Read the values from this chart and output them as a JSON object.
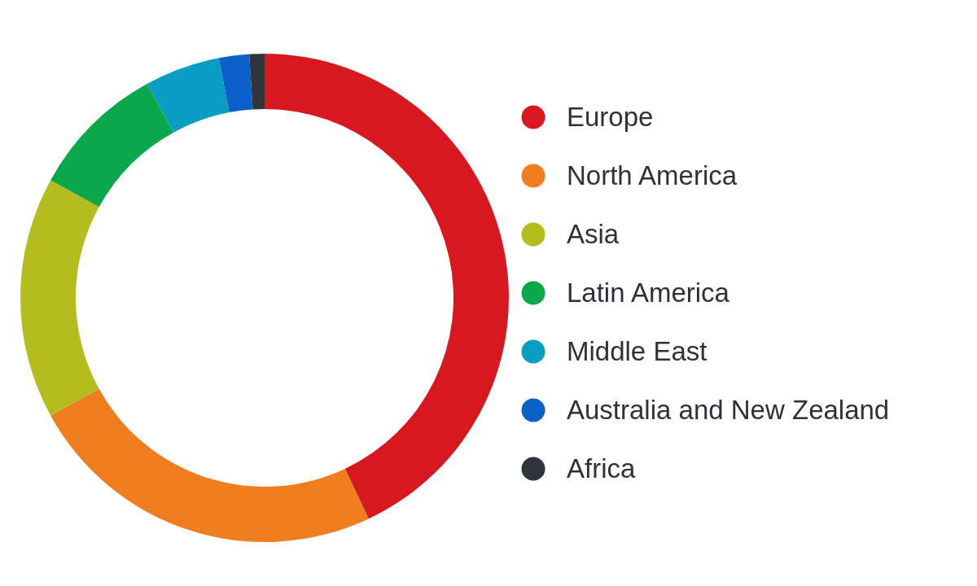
{
  "chart_data": {
    "type": "donut",
    "categories": [
      "Europe",
      "North America",
      "Asia",
      "Latin America",
      "Middle East",
      "Australia and New Zealand",
      "Africa"
    ],
    "values": [
      43,
      24,
      16,
      9,
      5,
      2,
      1
    ],
    "colors": [
      "#d7191f",
      "#f07e1f",
      "#b5bd1e",
      "#0aa84a",
      "#0a9dc2",
      "#0a5fc8",
      "#30353b"
    ],
    "legend": "right"
  }
}
